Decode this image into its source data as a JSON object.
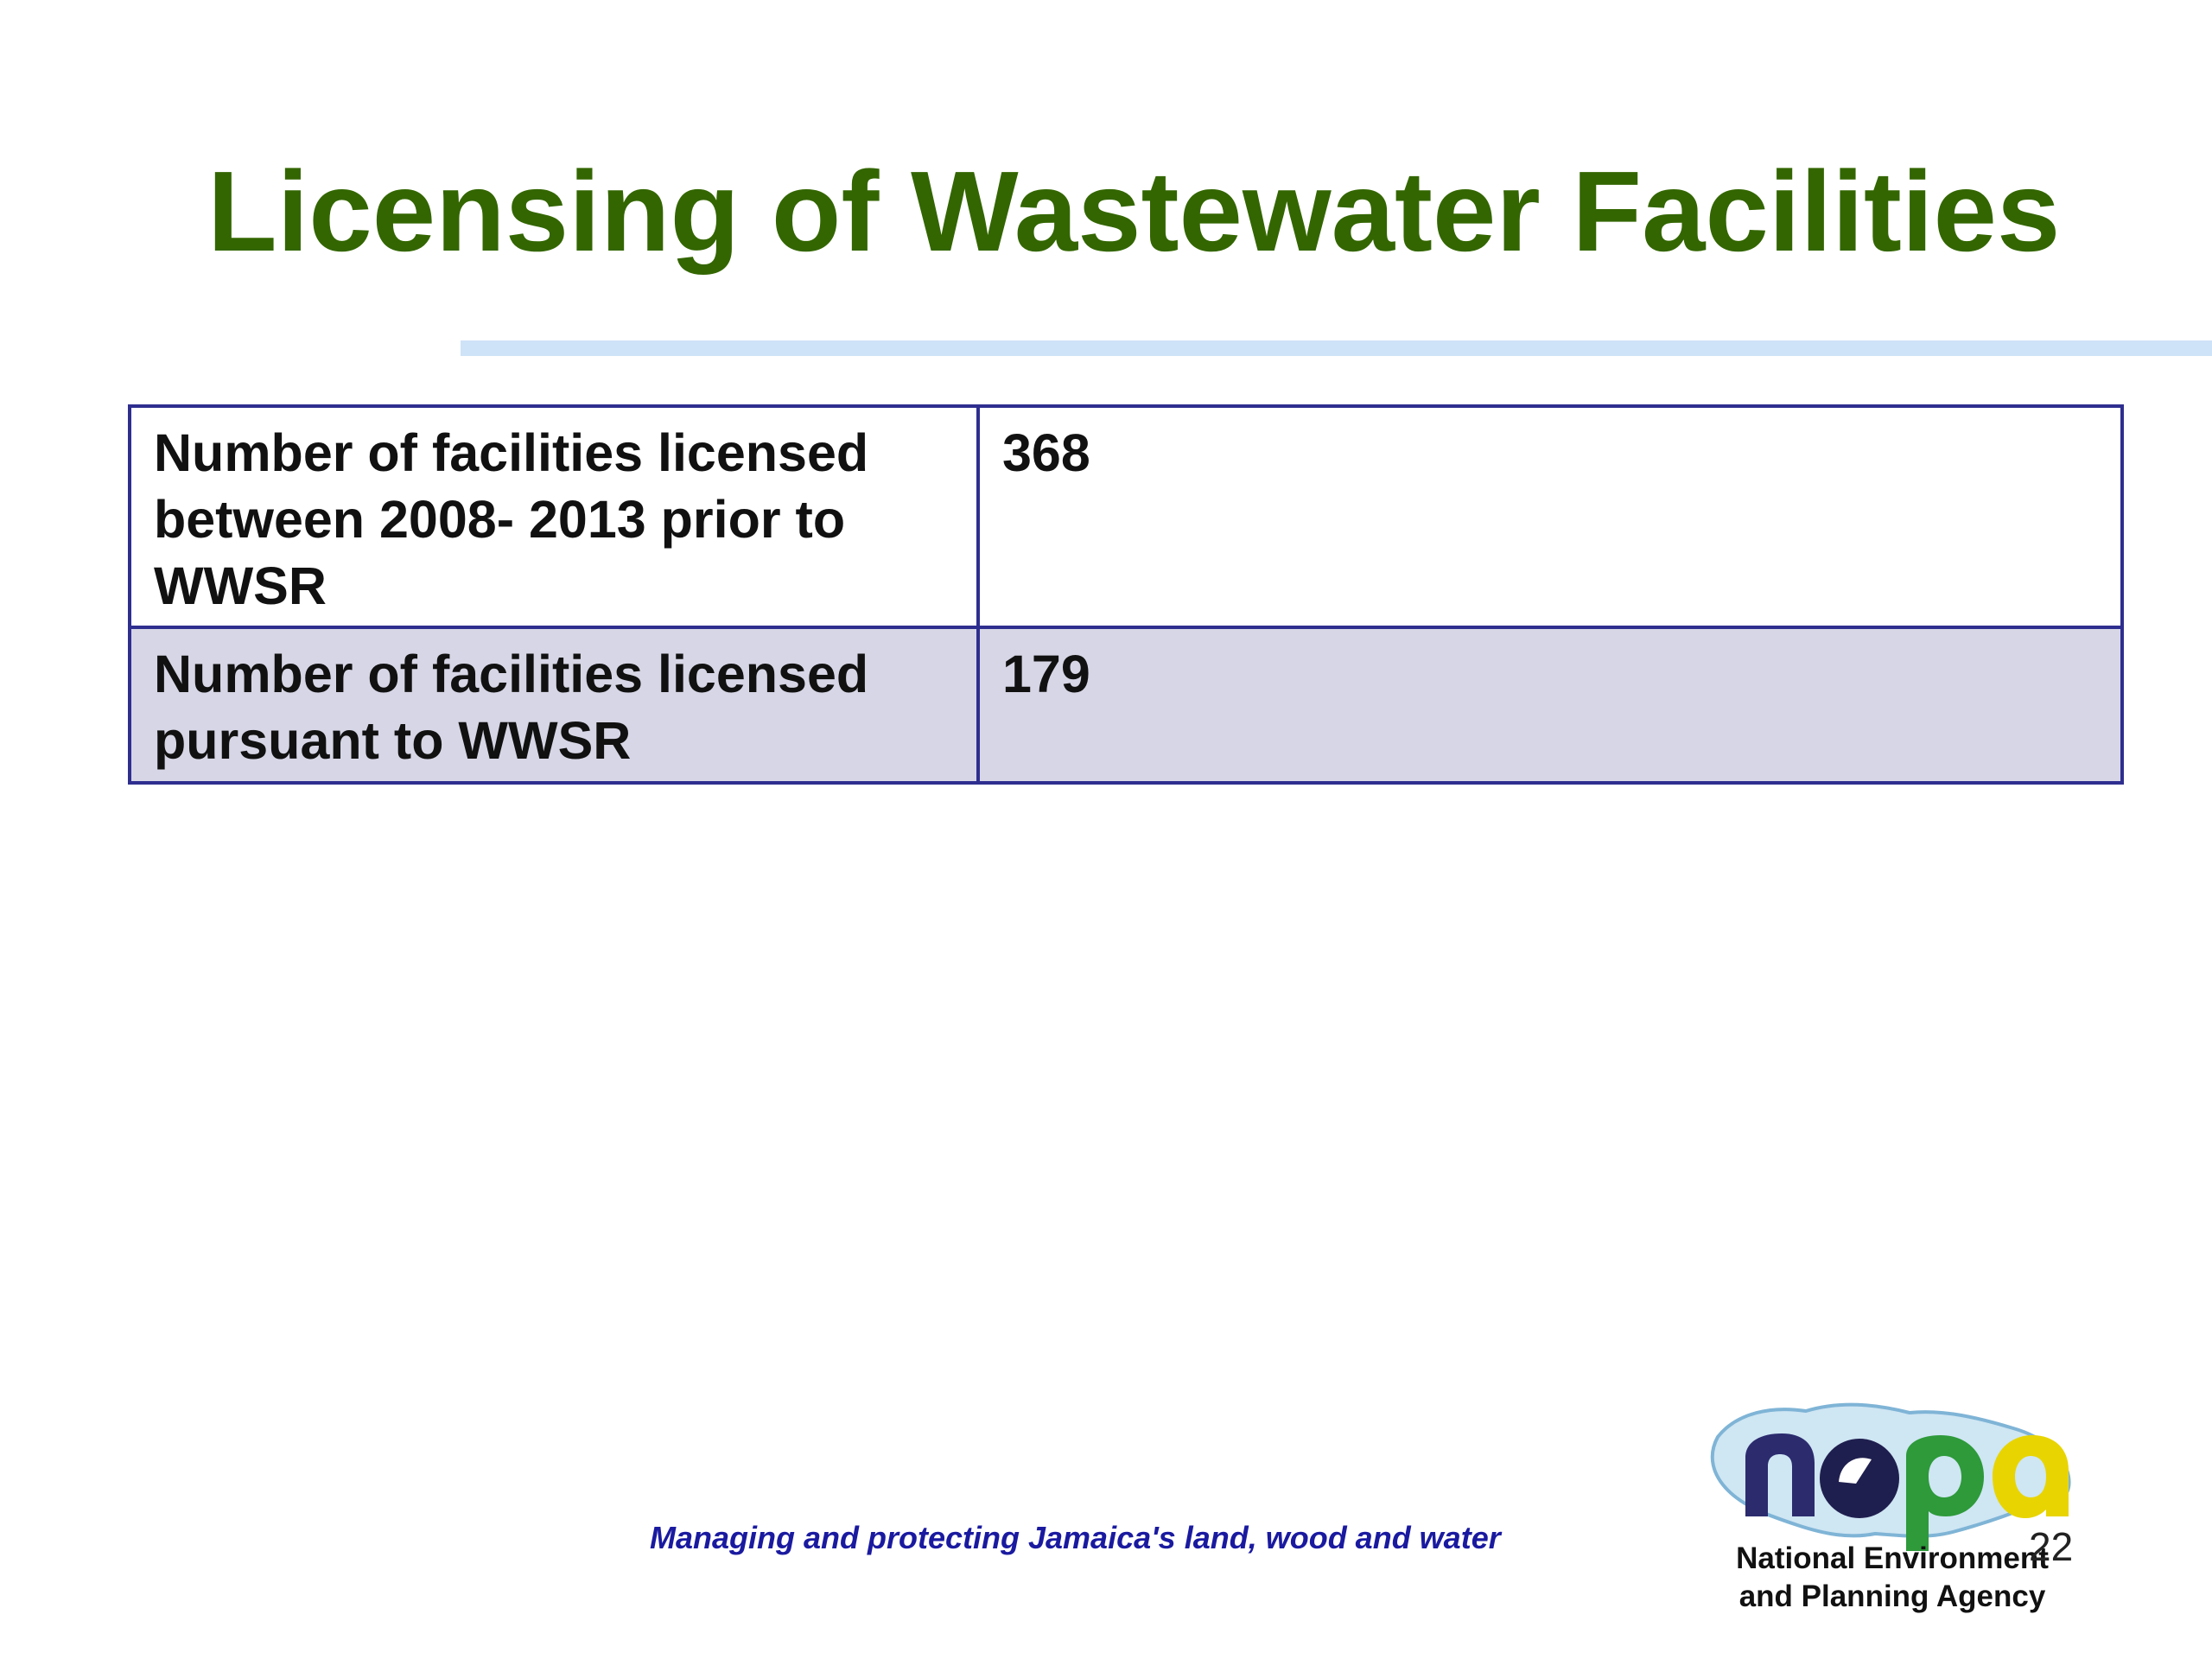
{
  "slide": {
    "title": "Licensing of Wastewater Facilities",
    "page_number": "22"
  },
  "table": {
    "rows": [
      {
        "label": "Number of facilities licensed between 2008- 2013 prior to WWSR",
        "value": "368"
      },
      {
        "label": "Number of facilities licensed pursuant to WWSR",
        "value": "179"
      }
    ]
  },
  "footer": {
    "tagline": "Managing and protecting Jamaica's land, wood and water",
    "agency_line_1": "National Environment",
    "agency_line_2": "and Planning Agency"
  },
  "logo": {
    "text": "nepa",
    "icon": "nepa-jamaica-map-logo",
    "colors": {
      "n": "#2b2b6e",
      "e": "#1f1f4f",
      "p": "#2e9a3a",
      "a": "#e8d400",
      "island": "#cfe6f3"
    }
  },
  "colors": {
    "title": "#336600",
    "rule": "#cfe3f8",
    "table_border": "#2e2e8f",
    "row_alt": "#d6d6e6",
    "tagline": "#1a1aa0"
  }
}
